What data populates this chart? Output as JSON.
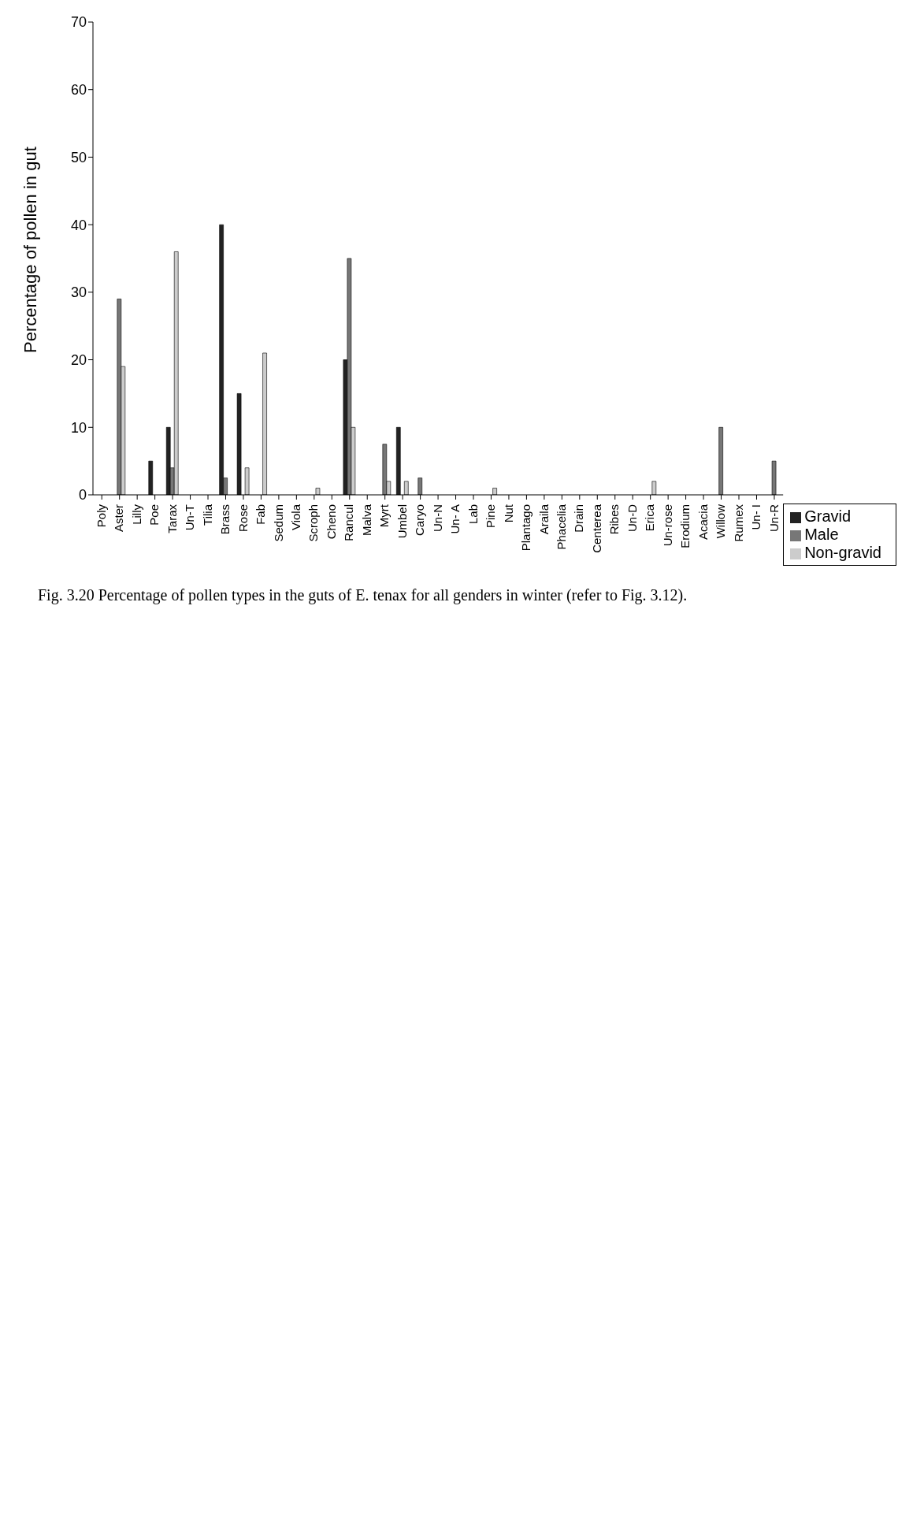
{
  "chart_data": {
    "type": "bar",
    "ylabel": "Percentage of pollen in gut",
    "categories": [
      "Poly",
      "Aster",
      "Lilly",
      "Poe",
      "Tarax",
      "Un-T",
      "Tilia",
      "Brass",
      "Rose",
      "Fab",
      "Sedum",
      "Viola",
      "Scroph",
      "Cheno",
      "Rancul",
      "Malva",
      "Myrt",
      "Umbel",
      "Caryo",
      "Un-N",
      "Un- A",
      "Lab",
      "Pine",
      "Nut",
      "Plantago",
      "Araila",
      "Phacelia",
      "Drain",
      "Centerea",
      "Ribes",
      "Un-D",
      "Erica",
      "Un-rose",
      "Erodium",
      "Acacia",
      "Willow",
      "Rumex",
      "Un- I",
      "Un-R"
    ],
    "series": [
      {
        "name": "Gravid",
        "color": "#222222",
        "values": [
          0,
          0,
          0,
          5,
          10,
          0,
          0,
          40,
          15,
          0,
          0,
          0,
          0,
          0,
          20,
          0,
          0,
          10,
          0,
          0,
          0,
          0,
          0,
          0,
          0,
          0,
          0,
          0,
          0,
          0,
          0,
          0,
          0,
          0,
          0,
          0,
          0,
          0,
          0
        ]
      },
      {
        "name": "Male",
        "color": "#777777",
        "values": [
          0,
          29,
          0,
          0,
          4,
          0,
          0,
          2.5,
          0,
          0,
          0,
          0,
          0,
          0,
          35,
          0,
          7.5,
          0,
          2.5,
          0,
          0,
          0,
          0,
          0,
          0,
          0,
          0,
          0,
          0,
          0,
          0,
          0,
          0,
          0,
          0,
          10,
          0,
          0,
          5
        ]
      },
      {
        "name": "Non-gravid",
        "color": "#cccccc",
        "values": [
          0,
          19,
          0,
          0,
          36,
          0,
          0,
          0,
          4,
          21,
          0,
          0,
          1,
          0,
          10,
          0,
          2,
          2,
          0,
          0,
          0,
          0,
          1,
          0,
          0,
          0,
          0,
          0,
          0,
          0,
          0,
          2,
          0,
          0,
          0,
          0,
          0,
          0,
          0
        ]
      }
    ],
    "ylim": [
      0,
      70
    ],
    "yticks": [
      0,
      10,
      20,
      30,
      40,
      50,
      60,
      70
    ],
    "grid": false,
    "legend": "bottom right",
    "annotations": [
      "Fig. 3.20 Percentage of pollen types in the guts of E. tenax for all genders in winter (refer to Fig. 3.12)."
    ]
  }
}
